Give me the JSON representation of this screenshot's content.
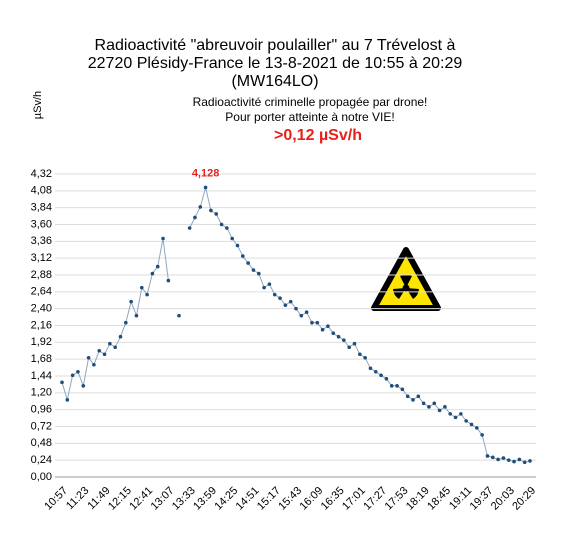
{
  "chart_data": {
    "type": "line",
    "title": [
      "Radioactivité \"abreuvoir poulailler\" au 7 Trévelost à",
      "22720 Plésidy-France le 13-8-2021 de 10:55 à 20:29",
      "(MW164LO)"
    ],
    "y_label": "µSv/h",
    "subtitle": [
      "Radioactivité criminelle propagée par drone!",
      "Pour porter atteinte à notre VIE!"
    ],
    "warning": ">0,12 µSv/h",
    "categories": [
      "10:57",
      null,
      null,
      null,
      "11:23",
      null,
      null,
      null,
      "11:49",
      null,
      null,
      null,
      "12:15",
      null,
      null,
      null,
      "12:41",
      null,
      null,
      null,
      "13:07",
      null,
      null,
      null,
      "13:33",
      null,
      null,
      null,
      "13:59",
      null,
      null,
      null,
      "14:25",
      null,
      null,
      null,
      "14:51",
      null,
      null,
      null,
      "15:17",
      null,
      null,
      null,
      "15:43",
      null,
      null,
      null,
      "16:09",
      null,
      null,
      null,
      "16:35",
      null,
      null,
      null,
      "17:01",
      null,
      null,
      null,
      "17:27",
      null,
      null,
      null,
      "17:53",
      null,
      null,
      null,
      "18:19",
      null,
      null,
      null,
      "18:45",
      null,
      null,
      null,
      "19:11",
      null,
      null,
      null,
      "19:37",
      null,
      null,
      null,
      "20:03",
      null,
      null,
      null,
      "20:29"
    ],
    "series": [
      {
        "name": "µSv/h",
        "color": "#1f4e79",
        "values": [
          1.35,
          1.1,
          1.45,
          1.5,
          1.3,
          1.7,
          1.6,
          1.8,
          1.75,
          1.9,
          1.85,
          2.0,
          2.2,
          2.5,
          2.3,
          2.7,
          2.6,
          2.9,
          3.0,
          3.4,
          2.8,
          null,
          2.3,
          null,
          3.55,
          3.7,
          3.85,
          4.128,
          3.8,
          3.75,
          3.6,
          3.55,
          3.4,
          3.3,
          3.15,
          3.05,
          2.95,
          2.9,
          2.7,
          2.75,
          2.6,
          2.55,
          2.45,
          2.5,
          2.4,
          2.3,
          2.35,
          2.2,
          2.2,
          2.1,
          2.15,
          2.05,
          2.0,
          1.95,
          1.85,
          1.9,
          1.75,
          1.7,
          1.55,
          1.5,
          1.45,
          1.4,
          1.3,
          1.3,
          1.25,
          1.15,
          1.1,
          1.15,
          1.05,
          1.0,
          1.05,
          0.95,
          1.0,
          0.9,
          0.85,
          0.9,
          0.8,
          0.75,
          0.7,
          0.6,
          0.3,
          0.28,
          0.25,
          0.27,
          0.24,
          0.22,
          0.25,
          0.21,
          0.23
        ],
        "value_labels": [
          null,
          null,
          null,
          null,
          null,
          null,
          null,
          null,
          null,
          null,
          null,
          null,
          null,
          null,
          null,
          null,
          null,
          null,
          null,
          null,
          null,
          null,
          null,
          null,
          null,
          null,
          null,
          "4,128",
          null,
          null,
          null,
          null,
          null,
          null,
          null,
          null,
          null,
          null,
          null,
          null,
          null,
          null,
          null,
          null,
          null,
          null,
          null,
          null,
          null,
          null,
          null,
          null,
          null,
          null,
          null,
          null,
          null,
          null,
          null,
          null,
          null,
          null,
          null,
          null,
          null,
          null,
          null,
          null,
          null,
          null,
          null,
          null,
          null,
          null,
          null,
          null,
          null,
          null,
          null,
          null,
          null,
          null,
          null,
          null,
          null,
          null,
          null,
          null,
          null
        ]
      }
    ],
    "ylim": [
      0,
      4.32
    ],
    "yticks": [
      {
        "value": 0,
        "label": "0,00"
      },
      {
        "value": 0.24,
        "label": "0,24"
      },
      {
        "value": 0.48,
        "label": "0,48"
      },
      {
        "value": 0.72,
        "label": "0,72"
      },
      {
        "value": 0.96,
        "label": "0,96"
      },
      {
        "value": 1.2,
        "label": "1,20"
      },
      {
        "value": 1.44,
        "label": "1,44"
      },
      {
        "value": 1.68,
        "label": "1,68"
      },
      {
        "value": 1.92,
        "label": "1,92"
      },
      {
        "value": 2.16,
        "label": "2,16"
      },
      {
        "value": 2.4,
        "label": "2,40"
      },
      {
        "value": 2.64,
        "label": "2,64"
      },
      {
        "value": 2.88,
        "label": "2,88"
      },
      {
        "value": 3.12,
        "label": "3,12"
      },
      {
        "value": 3.36,
        "label": "3,36"
      },
      {
        "value": 3.6,
        "label": "3,60"
      },
      {
        "value": 3.84,
        "label": "3,84"
      },
      {
        "value": 4.08,
        "label": "4,08"
      },
      {
        "value": 4.32,
        "label": "4,32"
      }
    ],
    "grid": true
  }
}
